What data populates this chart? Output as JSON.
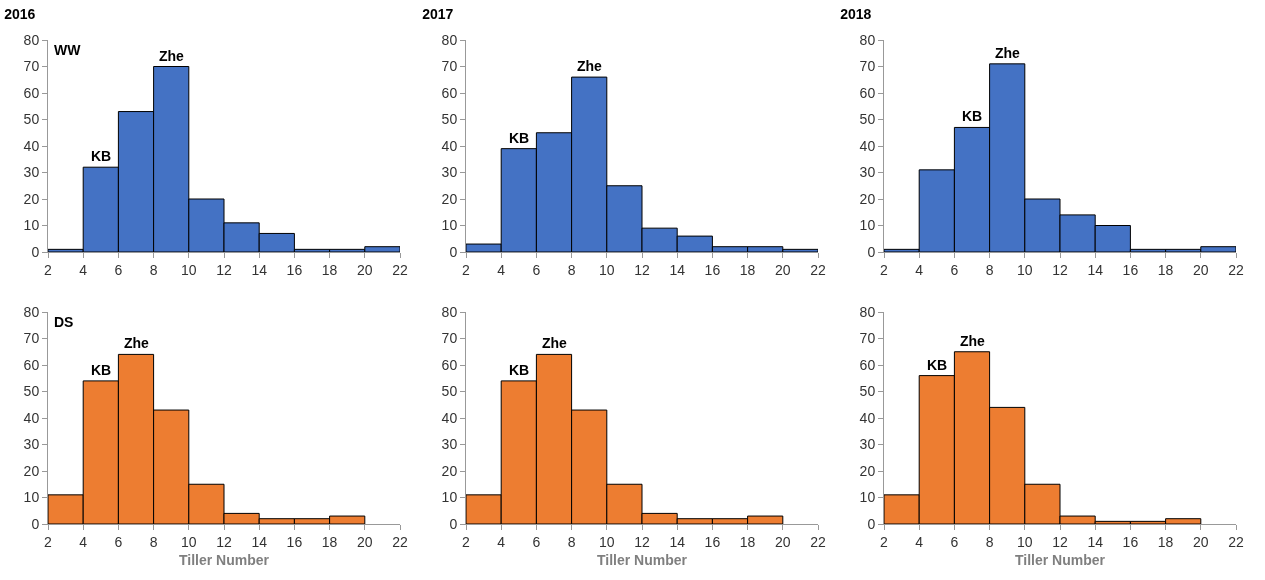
{
  "chart_data": [
    {
      "type": "histogram",
      "title": "2016",
      "annotations": [
        "WW",
        {
          "text": "KB",
          "x": 5,
          "y": 32
        },
        {
          "text": "Zhe",
          "x": 9,
          "y": 70
        }
      ],
      "bins": [
        2,
        4,
        6,
        8,
        10,
        12,
        14,
        16,
        18,
        20,
        22
      ],
      "values": [
        1,
        32,
        53,
        70,
        20,
        11,
        7,
        1,
        1,
        2
      ],
      "color": "#4472c4",
      "xlim": [
        2,
        22
      ],
      "xticks": [
        2,
        4,
        6,
        8,
        10,
        12,
        14,
        16,
        18,
        20,
        22
      ],
      "ylim": [
        0,
        80
      ],
      "yticks": [
        0,
        10,
        20,
        30,
        40,
        50,
        60,
        70,
        80
      ],
      "grid": false
    },
    {
      "type": "histogram",
      "title": "2017",
      "annotations": [
        {
          "text": "KB",
          "x": 5,
          "y": 39
        },
        {
          "text": "Zhe",
          "x": 9,
          "y": 66
        }
      ],
      "bins": [
        2,
        4,
        6,
        8,
        10,
        12,
        14,
        16,
        18,
        20,
        22
      ],
      "values": [
        3,
        39,
        45,
        66,
        25,
        9,
        6,
        2,
        2,
        1
      ],
      "color": "#4472c4",
      "xlim": [
        2,
        22
      ],
      "xticks": [
        2,
        4,
        6,
        8,
        10,
        12,
        14,
        16,
        18,
        20,
        22
      ],
      "ylim": [
        0,
        80
      ],
      "yticks": [
        0,
        10,
        20,
        30,
        40,
        50,
        60,
        70,
        80
      ],
      "grid": false
    },
    {
      "type": "histogram",
      "title": "2018",
      "annotations": [
        {
          "text": "KB",
          "x": 7,
          "y": 47
        },
        {
          "text": "Zhe",
          "x": 9,
          "y": 71
        }
      ],
      "bins": [
        2,
        4,
        6,
        8,
        10,
        12,
        14,
        16,
        18,
        20,
        22
      ],
      "values": [
        1,
        31,
        47,
        71,
        20,
        14,
        10,
        1,
        1,
        2
      ],
      "color": "#4472c4",
      "xlim": [
        2,
        22
      ],
      "xticks": [
        2,
        4,
        6,
        8,
        10,
        12,
        14,
        16,
        18,
        20,
        22
      ],
      "ylim": [
        0,
        80
      ],
      "yticks": [
        0,
        10,
        20,
        30,
        40,
        50,
        60,
        70,
        80
      ],
      "grid": false
    },
    {
      "type": "histogram",
      "xlabel": "Tiller Number",
      "annotations": [
        "DS",
        {
          "text": "KB",
          "x": 5,
          "y": 54
        },
        {
          "text": "Zhe",
          "x": 7,
          "y": 64
        }
      ],
      "bins": [
        2,
        4,
        6,
        8,
        10,
        12,
        14,
        16,
        18,
        20
      ],
      "values": [
        11,
        54,
        64,
        43,
        15,
        4,
        2,
        2,
        3
      ],
      "color": "#ed7d31",
      "xlim": [
        2,
        22
      ],
      "xticks": [
        2,
        4,
        6,
        8,
        10,
        12,
        14,
        16,
        18,
        20,
        22
      ],
      "ylim": [
        0,
        80
      ],
      "yticks": [
        0,
        10,
        20,
        30,
        40,
        50,
        60,
        70,
        80
      ],
      "grid": false
    },
    {
      "type": "histogram",
      "xlabel": "Tiller Number",
      "annotations": [
        {
          "text": "KB",
          "x": 5,
          "y": 54
        },
        {
          "text": "Zhe",
          "x": 7,
          "y": 64
        }
      ],
      "bins": [
        2,
        4,
        6,
        8,
        10,
        12,
        14,
        16,
        18,
        20
      ],
      "values": [
        11,
        54,
        64,
        43,
        15,
        4,
        2,
        2,
        3
      ],
      "color": "#ed7d31",
      "xlim": [
        2,
        22
      ],
      "xticks": [
        2,
        4,
        6,
        8,
        10,
        12,
        14,
        16,
        18,
        20,
        22
      ],
      "ylim": [
        0,
        80
      ],
      "yticks": [
        0,
        10,
        20,
        30,
        40,
        50,
        60,
        70,
        80
      ],
      "grid": false
    },
    {
      "type": "histogram",
      "xlabel": "Tiller Number",
      "annotations": [
        {
          "text": "KB",
          "x": 5,
          "y": 56
        },
        {
          "text": "Zhe",
          "x": 7,
          "y": 65
        }
      ],
      "bins": [
        2,
        4,
        6,
        8,
        10,
        12,
        14,
        16,
        18,
        20
      ],
      "values": [
        11,
        56,
        65,
        44,
        15,
        3,
        1,
        1,
        2
      ],
      "color": "#ed7d31",
      "xlim": [
        2,
        22
      ],
      "xticks": [
        2,
        4,
        6,
        8,
        10,
        12,
        14,
        16,
        18,
        20,
        22
      ],
      "ylim": [
        0,
        80
      ],
      "yticks": [
        0,
        10,
        20,
        30,
        40,
        50,
        60,
        70,
        80
      ],
      "grid": false
    }
  ]
}
